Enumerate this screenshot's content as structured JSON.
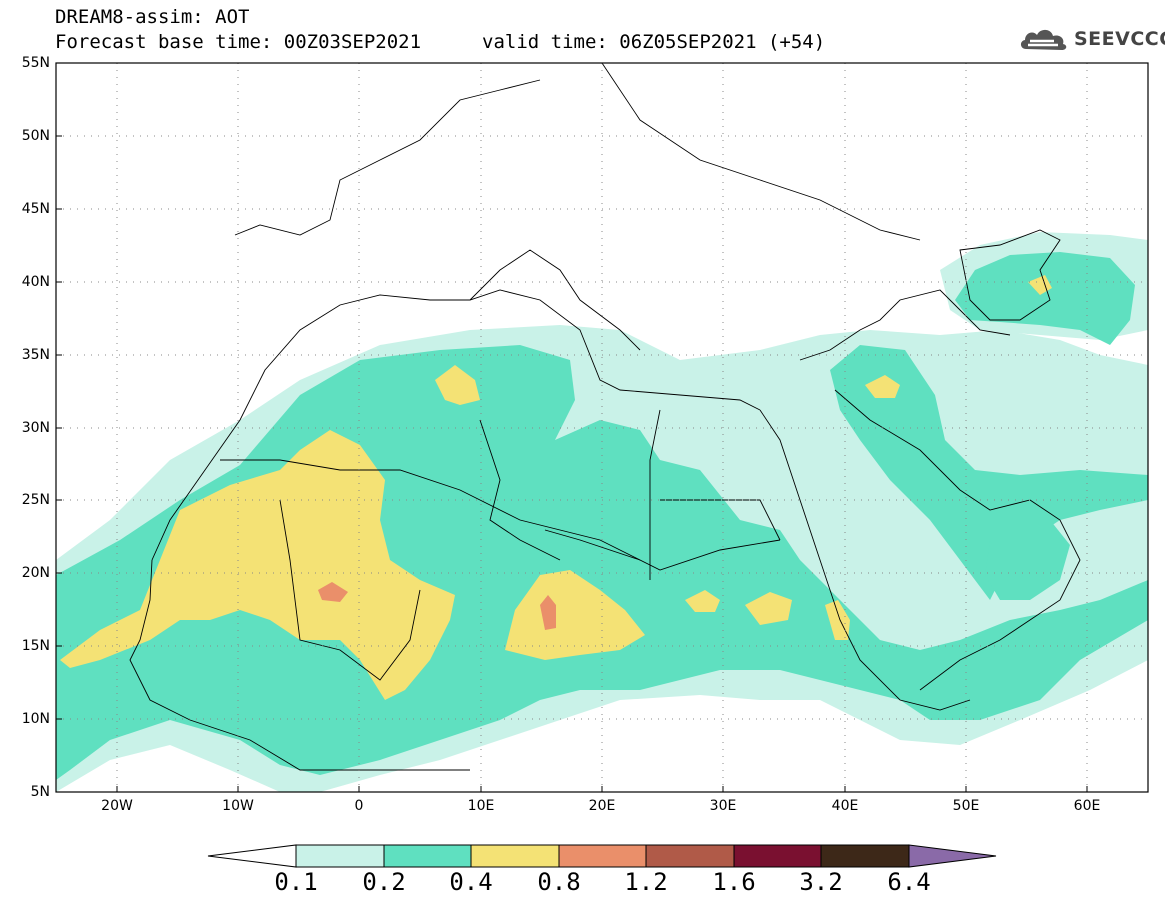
{
  "header": {
    "model_line": "DREAM8-assim: AOT",
    "base_line": "Forecast base time: 00Z03SEP2021",
    "valid_line": "valid time: 06Z05SEP2021 (+54)"
  },
  "logo": {
    "text": "SEEVCCC",
    "icon": "cloud-icon"
  },
  "map": {
    "lon_range": [
      -25,
      65
    ],
    "lat_range": [
      5,
      55
    ],
    "lat_ticks": [
      "55N",
      "50N",
      "45N",
      "40N",
      "35N",
      "30N",
      "25N",
      "20N",
      "15N",
      "10N",
      "5N"
    ],
    "lon_ticks": [
      "20W",
      "10W",
      "0",
      "10E",
      "20E",
      "30E",
      "40E",
      "50E",
      "60E"
    ],
    "gridlines": true
  },
  "colorbar": {
    "labels": [
      "0.1",
      "0.2",
      "0.4",
      "0.8",
      "1.2",
      "1.6",
      "3.2",
      "6.4"
    ],
    "colors": [
      "#ffffff",
      "#c9f2e8",
      "#5fe0c0",
      "#f4e275",
      "#ea8f6a",
      "#b05a48",
      "#7a1030",
      "#3d2818",
      "#8a6aa8"
    ]
  }
}
